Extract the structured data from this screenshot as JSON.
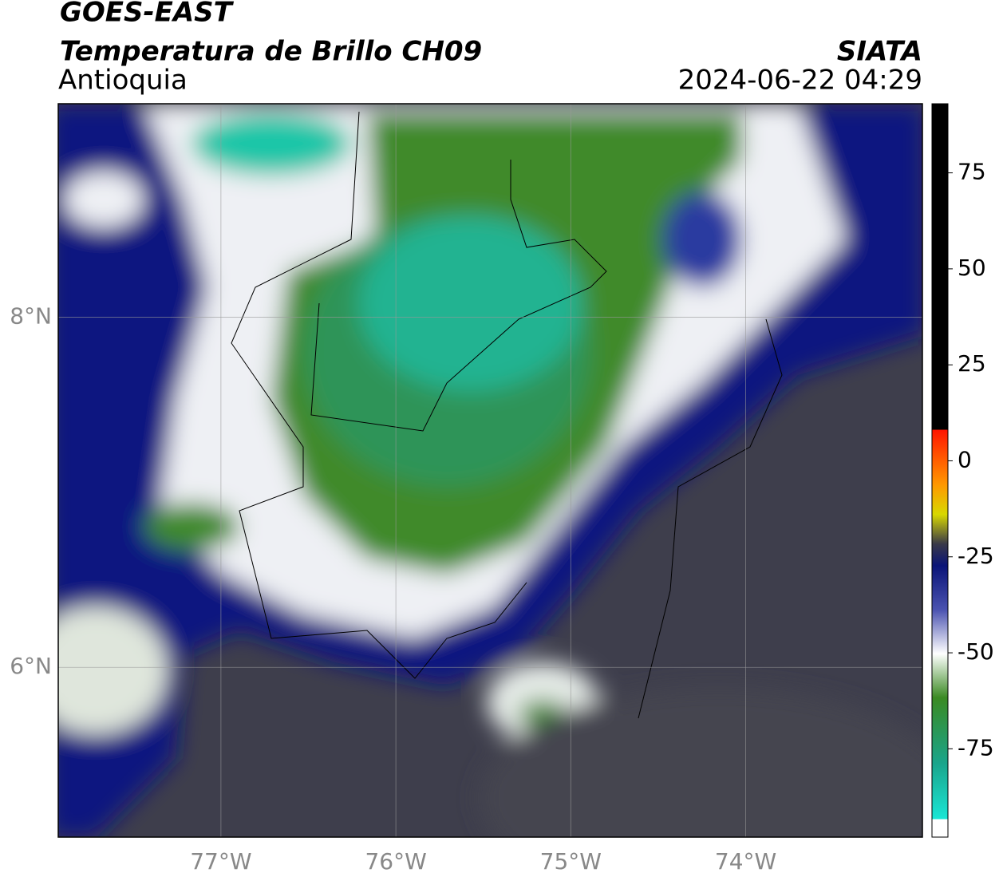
{
  "header": {
    "title": "GOES-EAST",
    "subtitle": "Temperatura de Brillo CH09",
    "region": "Antioquia",
    "source": "SIATA",
    "datetime": "2024-06-22 04:29"
  },
  "map": {
    "xlim": [
      -77.93,
      -72.99
    ],
    "ylim": [
      5.03,
      9.22
    ],
    "xticks": [
      {
        "value": -77,
        "label": "77°W"
      },
      {
        "value": -76,
        "label": "76°W"
      },
      {
        "value": -75,
        "label": "75°W"
      },
      {
        "value": -74,
        "label": "74°W"
      }
    ],
    "yticks": [
      {
        "value": 8,
        "label": "8°N"
      },
      {
        "value": 6,
        "label": "6°N"
      }
    ]
  },
  "colorbar": {
    "clim": [
      -98,
      93
    ],
    "ticks": [
      75,
      50,
      25,
      0,
      -25,
      -50,
      -75
    ]
  }
}
